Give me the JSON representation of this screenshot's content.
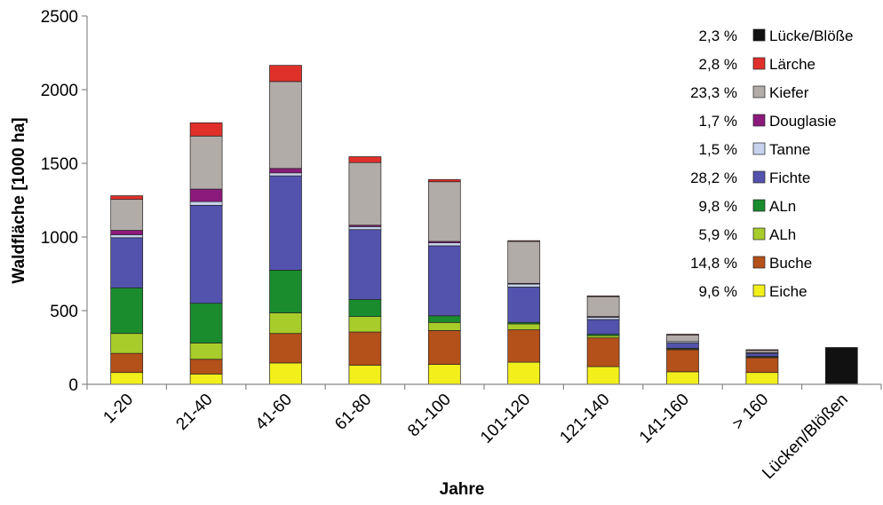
{
  "chart_data": {
    "type": "bar",
    "stacked": true,
    "title": "",
    "xlabel": "Jahre",
    "ylabel": "Waldfläche [1000 ha]",
    "ylim": [
      0,
      2500
    ],
    "yticks": [
      "0",
      "500",
      "1000",
      "1500",
      "2000",
      "2500"
    ],
    "grid": false,
    "legend_position": "top-right",
    "categories": [
      "1-20",
      "21-40",
      "41-60",
      "61-80",
      "81-100",
      "101-120",
      "121-140",
      "141-160",
      "> 160",
      "Lücken/Blößen"
    ],
    "series": [
      {
        "name": "Eiche",
        "percent": "9,6 %",
        "color": "#f2ef1a",
        "values": [
          80,
          70,
          145,
          130,
          135,
          150,
          120,
          85,
          80,
          0
        ]
      },
      {
        "name": "Buche",
        "percent": "14,8 %",
        "color": "#b4501a",
        "values": [
          130,
          100,
          200,
          225,
          230,
          220,
          195,
          150,
          100,
          0
        ]
      },
      {
        "name": "ALh",
        "percent": "5,9 %",
        "color": "#a8cc2a",
        "values": [
          135,
          110,
          140,
          105,
          55,
          40,
          15,
          5,
          5,
          0
        ]
      },
      {
        "name": "ALn",
        "percent": "9,8 %",
        "color": "#1a8c2e",
        "values": [
          310,
          270,
          290,
          115,
          45,
          10,
          10,
          5,
          5,
          0
        ]
      },
      {
        "name": "Fichte",
        "percent": "28,2 %",
        "color": "#5353ad",
        "values": [
          340,
          665,
          640,
          475,
          475,
          240,
          100,
          35,
          20,
          0
        ]
      },
      {
        "name": "Tanne",
        "percent": "1,5 %",
        "color": "#c7d3ec",
        "values": [
          20,
          25,
          20,
          20,
          20,
          20,
          15,
          10,
          5,
          0
        ]
      },
      {
        "name": "Douglasie",
        "percent": "1,7 %",
        "color": "#8c1a7c",
        "values": [
          30,
          85,
          30,
          10,
          10,
          5,
          5,
          0,
          0,
          0
        ]
      },
      {
        "name": "Kiefer",
        "percent": "23,3 %",
        "color": "#b2aca8",
        "values": [
          210,
          360,
          590,
          425,
          405,
          285,
          135,
          45,
          15,
          0
        ]
      },
      {
        "name": "Lärche",
        "percent": "2,8 %",
        "color": "#e0302a",
        "values": [
          25,
          90,
          110,
          40,
          15,
          5,
          5,
          5,
          5,
          0
        ]
      },
      {
        "name": "Lücke/Blöße",
        "percent": "2,3 %",
        "color": "#111111",
        "values": [
          0,
          0,
          0,
          0,
          0,
          0,
          0,
          0,
          0,
          250
        ]
      }
    ]
  }
}
